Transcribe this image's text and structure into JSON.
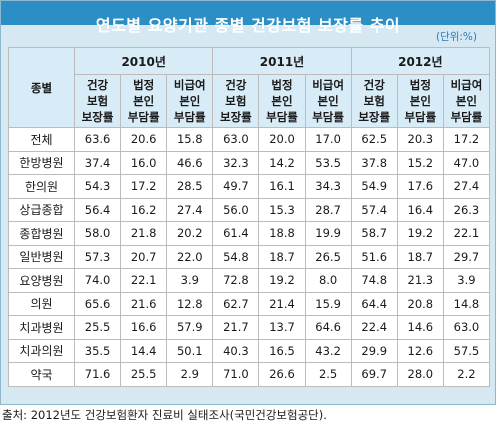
{
  "title": "연도별 요양기관 종별 건강보험 보장률 추이",
  "unit": "(단위:%)",
  "header": {
    "category": "종별",
    "years": [
      "2010년",
      "2011년",
      "2012년"
    ],
    "sub_columns": [
      [
        "건강",
        "보험",
        "보장률"
      ],
      [
        "법정",
        "본인",
        "부담률"
      ],
      [
        "비급여",
        "본인",
        "부담률"
      ]
    ]
  },
  "rows": [
    {
      "label": "전체",
      "values": [
        "63.6",
        "20.6",
        "15.8",
        "63.0",
        "20.0",
        "17.0",
        "62.5",
        "20.3",
        "17.2"
      ]
    },
    {
      "label": "한방병원",
      "values": [
        "37.4",
        "16.0",
        "46.6",
        "32.3",
        "14.2",
        "53.5",
        "37.8",
        "15.2",
        "47.0"
      ]
    },
    {
      "label": "한의원",
      "values": [
        "54.3",
        "17.2",
        "28.5",
        "49.7",
        "16.1",
        "34.3",
        "54.9",
        "17.6",
        "27.4"
      ]
    },
    {
      "label": "상급종합",
      "values": [
        "56.4",
        "16.2",
        "27.4",
        "56.0",
        "15.3",
        "28.7",
        "57.4",
        "16.4",
        "26.3"
      ]
    },
    {
      "label": "종합병원",
      "values": [
        "58.0",
        "21.8",
        "20.2",
        "61.4",
        "18.8",
        "19.9",
        "58.7",
        "19.2",
        "22.1"
      ]
    },
    {
      "label": "일반병원",
      "values": [
        "57.3",
        "20.7",
        "22.0",
        "54.8",
        "18.7",
        "26.5",
        "51.6",
        "18.7",
        "29.7"
      ]
    },
    {
      "label": "요양병원",
      "values": [
        "74.0",
        "22.1",
        "3.9",
        "72.8",
        "19.2",
        "8.0",
        "74.8",
        "21.3",
        "3.9"
      ]
    },
    {
      "label": "의원",
      "values": [
        "65.6",
        "21.6",
        "12.8",
        "62.7",
        "21.4",
        "15.9",
        "64.4",
        "20.8",
        "14.8"
      ]
    },
    {
      "label": "치과병원",
      "values": [
        "25.5",
        "16.6",
        "57.9",
        "21.7",
        "13.7",
        "64.6",
        "22.4",
        "14.6",
        "63.0"
      ]
    },
    {
      "label": "치과의원",
      "values": [
        "35.5",
        "14.4",
        "50.1",
        "40.3",
        "16.5",
        "43.2",
        "29.9",
        "12.6",
        "57.5"
      ]
    },
    {
      "label": "약국",
      "values": [
        "71.6",
        "25.5",
        "2.9",
        "71.0",
        "26.6",
        "2.5",
        "69.7",
        "28.0",
        "2.2"
      ]
    }
  ],
  "source": "출처: 2012년도 건강보험환자 진료비 실태조사(국민건강보험공단)."
}
